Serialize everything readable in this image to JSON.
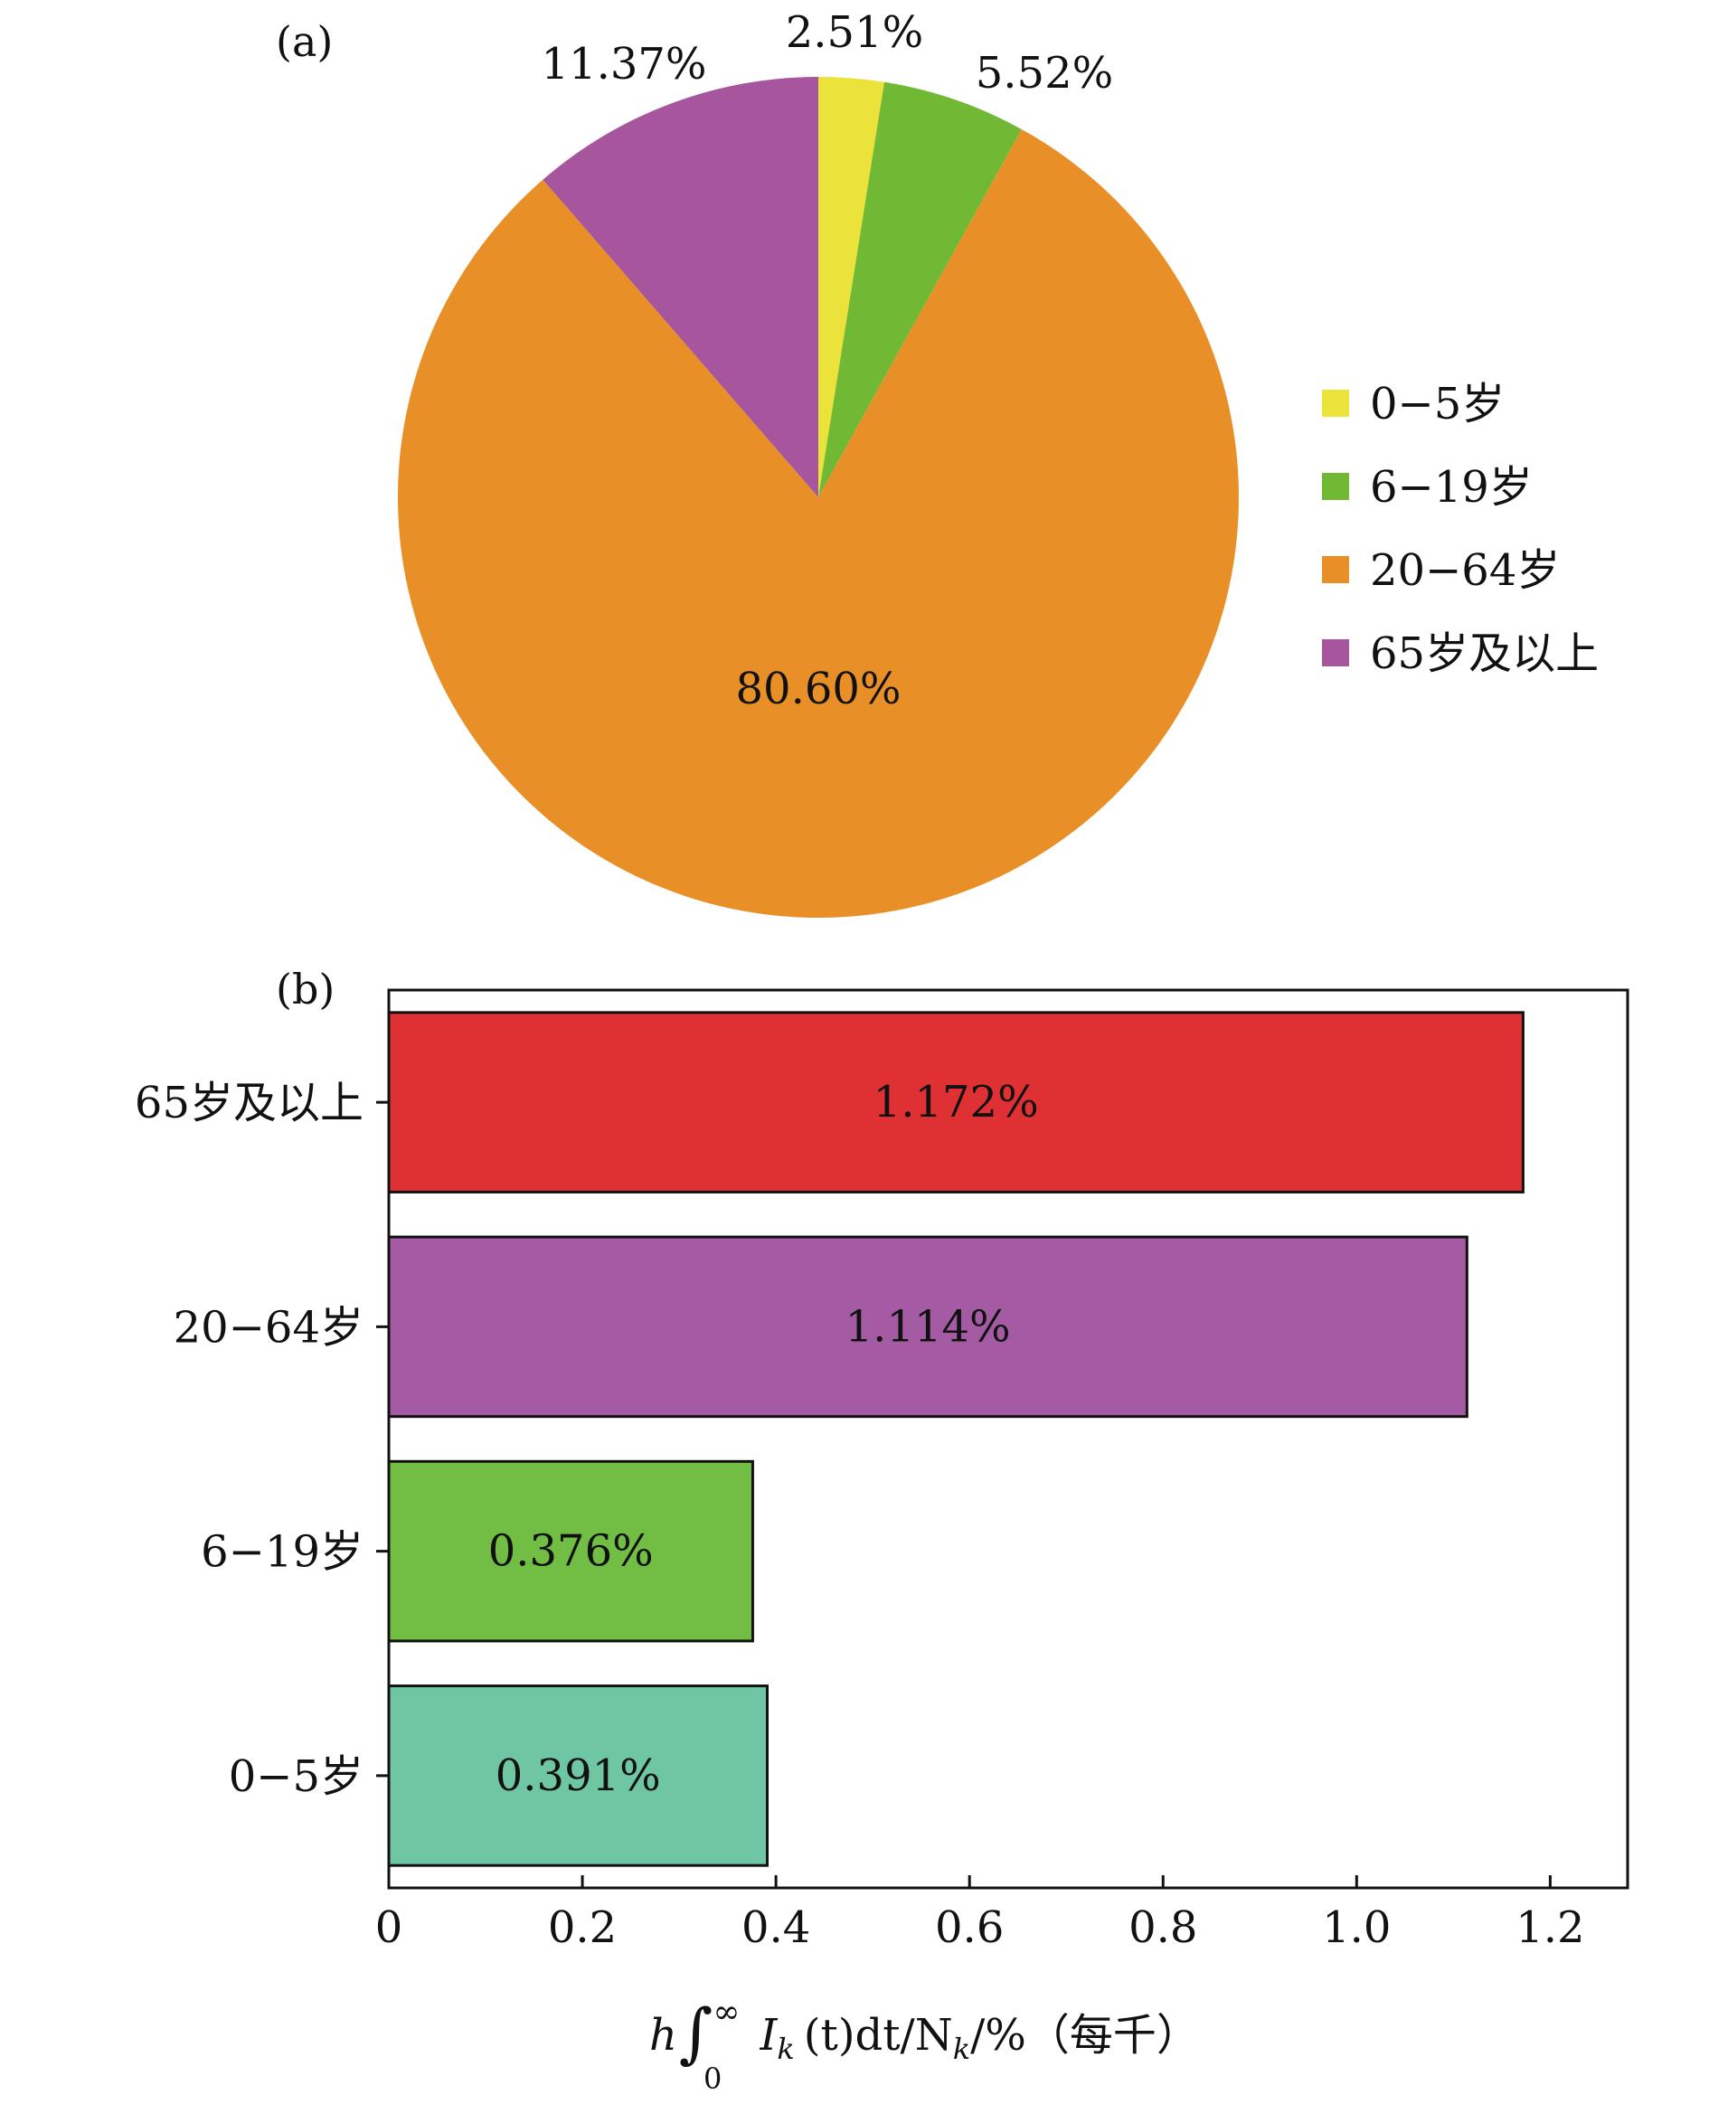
{
  "chart_data": [
    {
      "type": "pie",
      "panel_label": "(a)",
      "slices": [
        {
          "label": "0−5岁",
          "value": 2.51,
          "text": "2.51%",
          "color": "#ebe23a"
        },
        {
          "label": "6−19岁",
          "value": 5.52,
          "text": "5.52%",
          "color": "#71b835"
        },
        {
          "label": "20−64岁",
          "value": 80.6,
          "text": "80.60%",
          "color": "#e88f27"
        },
        {
          "label": "65岁及以上",
          "value": 11.37,
          "text": "11.37%",
          "color": "#a7559c"
        }
      ],
      "legend": [
        "0−5岁",
        "6−19岁",
        "20−64岁",
        "65岁及以上"
      ],
      "legend_placement": "right"
    },
    {
      "type": "bar",
      "orientation": "horizontal",
      "panel_label": "(b)",
      "categories": [
        "65岁及以上",
        "20−64岁",
        "6−19岁",
        "0−5岁"
      ],
      "values": [
        1.172,
        1.114,
        0.376,
        0.391
      ],
      "value_labels": [
        "1.172%",
        "1.114%",
        "0.376%",
        "0.391%"
      ],
      "colors": [
        "#df3034",
        "#a55ba4",
        "#72be45",
        "#6fc6a3"
      ],
      "xlim": [
        0,
        1.28
      ],
      "xticks": [
        0,
        0.2,
        0.4,
        0.6,
        0.8,
        1.0,
        1.2
      ],
      "xtick_labels": [
        "0",
        "0.2",
        "0.4",
        "0.6",
        "0.8",
        "1.0",
        "1.2"
      ],
      "xlabel": {
        "h": "h",
        "integral": "∫",
        "lower": "0",
        "upper": "∞",
        "rest": "I",
        "sub_k": "k",
        "tail": "(t)dt/N",
        "end": "/%（每千）"
      },
      "grid": false
    }
  ]
}
